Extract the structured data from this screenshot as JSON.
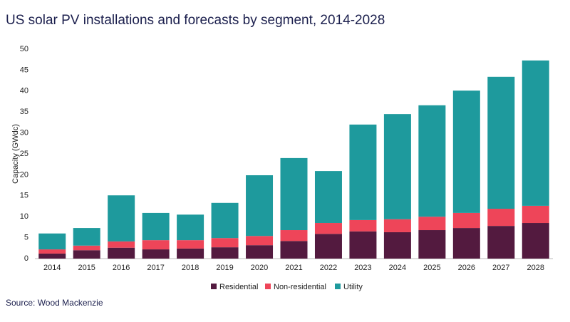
{
  "chart_data": {
    "type": "stacked_bar",
    "title": "US solar PV installations and forecasts by segment, 2014-2028",
    "y_label": "Capacity (GWdc)",
    "source": "Source: Wood Mackenzie",
    "categories": [
      "2014",
      "2015",
      "2016",
      "2017",
      "2018",
      "2019",
      "2020",
      "2021",
      "2022",
      "2023",
      "2024",
      "2025",
      "2026",
      "2027",
      "2028"
    ],
    "series": [
      {
        "name": "Residential",
        "color": "#531a3f",
        "values": [
          1.2,
          2.0,
          2.6,
          2.2,
          2.4,
          2.7,
          3.2,
          4.2,
          5.9,
          6.5,
          6.3,
          6.8,
          7.3,
          7.8,
          8.5
        ]
      },
      {
        "name": "Non-residential",
        "color": "#ee4559",
        "values": [
          1.0,
          1.1,
          1.5,
          2.2,
          2.0,
          2.2,
          2.2,
          2.6,
          2.6,
          2.7,
          3.1,
          3.2,
          3.6,
          4.1,
          4.1
        ]
      },
      {
        "name": "Utility",
        "color": "#1e9a9d",
        "values": [
          3.8,
          4.2,
          11.0,
          6.5,
          6.1,
          8.4,
          14.5,
          17.2,
          12.4,
          22.8,
          25.1,
          26.6,
          29.2,
          31.5,
          34.7
        ]
      }
    ],
    "ylim": [
      0,
      50
    ],
    "yticks": [
      0,
      5,
      10,
      15,
      20,
      25,
      30,
      35,
      40,
      45,
      50
    ],
    "grid": false
  }
}
